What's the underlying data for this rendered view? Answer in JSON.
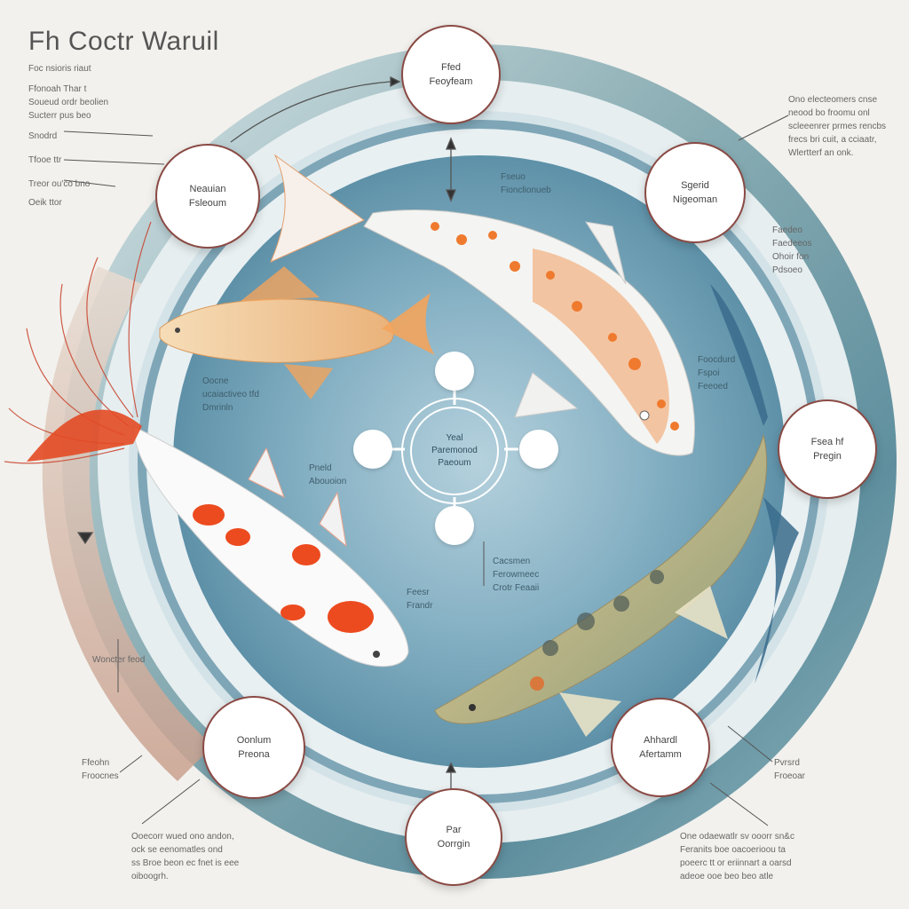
{
  "title": "Fh Coctr Waruil",
  "hub": {
    "line1": "Yeal",
    "line2": "Paremonod",
    "line3": "Paeoum"
  },
  "nodes": {
    "top": {
      "line1": "Ffed",
      "line2": "Feoyfeam"
    },
    "upper_left": {
      "line1": "Neauian",
      "line2": "Fsleoum"
    },
    "upper_right": {
      "line1": "Sgerid",
      "line2": "Nigeoman"
    },
    "right": {
      "line1": "Fsea hf",
      "line2": "Pregin"
    },
    "lower_right": {
      "line1": "Ahhardl",
      "line2": "Afertamm"
    },
    "bottom": {
      "line1": "Par",
      "line2": "Oorrgin"
    },
    "lower_left": {
      "line1": "Oonlum",
      "line2": "Preona"
    }
  },
  "notes": {
    "left_top": [
      "Foc nsioris riaut",
      "Ffonoah Thar t",
      "Soueud ordr beolien",
      "Sucterr pus beo"
    ],
    "left_mid": [
      "Snodrd",
      "Tfooe ttr",
      "Treor ou'co bno",
      "Oeik ttor"
    ],
    "right_top": [
      "Ono electeomers cnse",
      "neood bo froomu onl",
      "scleeenrer prmes rencbs",
      "frecs bri cuit, a cciaatr,",
      "Wlertterf an onk."
    ],
    "right_upper": [
      "Faedeo",
      "Faedeeos",
      "Ohoir fon",
      "Pdsoeo"
    ],
    "fish_a": [
      "Oocne",
      "ucaiactiveo tfd",
      "Dmrinln"
    ],
    "fish_b": [
      "Pneld",
      "Abouoion"
    ],
    "fish_c": [
      "Fseuo",
      "Fionclionueb"
    ],
    "center_right": [
      "Cacsmen",
      "Ferowmeec",
      "Crotr Feaaii"
    ],
    "fish_d": [
      "Foocdurd",
      "Fspoi",
      "Feeoed"
    ],
    "right_mid": [
      "Pvrsrd",
      "Froeoar"
    ],
    "left_mid2": [
      "Feesr",
      "Frandr",
      "Woncter feod"
    ],
    "left_low": [
      "Ffeohn",
      "Froocnes"
    ],
    "bottom_left": [
      "Ooecorr wued ono andon,",
      "ock se eenomatles ond",
      "ss Broe beon ec fnet is eee",
      "oiboogrh."
    ],
    "bottom_right": [
      "One odaewatlr sv ooorr sn&c",
      "Feranits boe oacoerioou ta",
      "poeerc tt or eriinnart a oarsd",
      "adeoe ooe beo beo atle"
    ]
  },
  "colors": {
    "background": "#f2f1ed",
    "ring_outer": "#7fa3ab",
    "ring_light": "#e3eef1",
    "pond": "#6f9fb3",
    "pond_center": "#a9c8d6",
    "node_border": "#8a4a44",
    "koi_orange": "#f07a2a",
    "koi_red": "#e63f1e"
  }
}
